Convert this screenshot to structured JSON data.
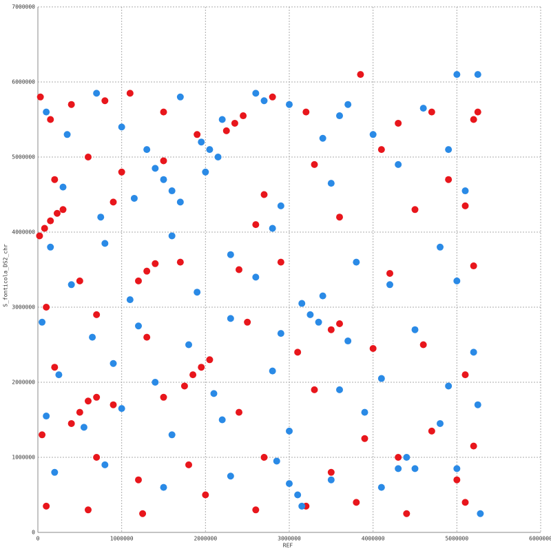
{
  "chart_data": {
    "type": "scatter",
    "xlabel": "REF",
    "ylabel": "S_fonticola_DS2_chr",
    "xlim": [
      0,
      6000000
    ],
    "ylim": [
      0,
      7000000
    ],
    "xticks": [
      0,
      1000000,
      2000000,
      3000000,
      4000000,
      5000000,
      6000000
    ],
    "yticks": [
      0,
      1000000,
      2000000,
      3000000,
      4000000,
      5000000,
      6000000,
      7000000
    ],
    "grid": true,
    "series": [
      {
        "color": "#e8161c",
        "x": [
          20000,
          80000,
          150000,
          230000,
          300000,
          1200000,
          1300000,
          1400000,
          1750000,
          1850000,
          1950000,
          2050000,
          400000,
          500000,
          600000,
          700000,
          2250000,
          2350000,
          2450000,
          3500000,
          3600000,
          30000,
          150000,
          400000,
          800000,
          1100000,
          1500000,
          1900000,
          2800000,
          3200000,
          3850000,
          4300000,
          4700000,
          5200000,
          5250000,
          600000,
          1000000,
          1500000,
          2700000,
          3300000,
          4100000,
          4900000,
          5100000,
          200000,
          900000,
          2600000,
          3600000,
          4500000,
          500000,
          1700000,
          2400000,
          2900000,
          4200000,
          5200000,
          100000,
          700000,
          1300000,
          2500000,
          3100000,
          4000000,
          4600000,
          5100000,
          200000,
          900000,
          1500000,
          2400000,
          3300000,
          3900000,
          4700000,
          5200000,
          50000,
          700000,
          1200000,
          1800000,
          2700000,
          3500000,
          4300000,
          5000000,
          100000,
          600000,
          1250000,
          2000000,
          2600000,
          3200000,
          3800000,
          4400000,
          5100000
        ],
        "values": [
          3950000,
          4050000,
          4150000,
          4250000,
          4300000,
          3350000,
          3480000,
          3580000,
          1950000,
          2100000,
          2200000,
          2300000,
          1450000,
          1600000,
          1750000,
          1800000,
          5350000,
          5450000,
          5550000,
          2700000,
          2780000,
          5800000,
          5500000,
          5700000,
          5750000,
          5850000,
          5600000,
          5300000,
          5800000,
          5600000,
          6100000,
          5450000,
          5600000,
          5500000,
          5600000,
          5000000,
          4800000,
          4950000,
          4500000,
          4900000,
          5100000,
          4700000,
          4350000,
          4700000,
          4400000,
          4100000,
          4200000,
          4300000,
          3350000,
          3600000,
          3500000,
          3600000,
          3450000,
          3550000,
          3000000,
          2900000,
          2600000,
          2800000,
          2400000,
          2450000,
          2500000,
          2100000,
          2200000,
          1700000,
          1800000,
          1600000,
          1900000,
          1250000,
          1350000,
          1150000,
          1300000,
          1000000,
          700000,
          900000,
          1000000,
          800000,
          1000000,
          700000,
          350000,
          300000,
          250000,
          500000,
          300000,
          350000,
          400000,
          250000,
          400000
        ]
      },
      {
        "color": "#2a8ae6",
        "x": [
          1400000,
          1500000,
          1600000,
          1700000,
          1950000,
          2050000,
          2150000,
          2600000,
          2700000,
          3150000,
          3250000,
          3350000,
          3700000,
          3600000,
          4400000,
          4500000,
          4300000,
          3000000,
          3100000,
          3150000,
          5000000,
          5250000,
          100000,
          350000,
          700000,
          1000000,
          1300000,
          1700000,
          2200000,
          3000000,
          3400000,
          4000000,
          4600000,
          4900000,
          300000,
          750000,
          1150000,
          2000000,
          2900000,
          3500000,
          4300000,
          5100000,
          150000,
          800000,
          1600000,
          2300000,
          2800000,
          3800000,
          4800000,
          400000,
          1100000,
          1900000,
          2600000,
          3400000,
          4200000,
          5000000,
          50000,
          650000,
          1200000,
          1800000,
          2300000,
          2900000,
          3700000,
          4500000,
          5200000,
          250000,
          900000,
          1400000,
          2100000,
          2800000,
          3600000,
          4100000,
          4900000,
          100000,
          550000,
          1000000,
          1600000,
          2200000,
          3000000,
          3900000,
          4800000,
          5250000,
          200000,
          800000,
          1500000,
          2300000,
          2850000,
          3500000,
          4100000,
          5000000,
          5280000
        ],
        "values": [
          4850000,
          4700000,
          4550000,
          4400000,
          5200000,
          5100000,
          5000000,
          5850000,
          5750000,
          3050000,
          2900000,
          2800000,
          5700000,
          5550000,
          1000000,
          850000,
          850000,
          650000,
          500000,
          350000,
          6100000,
          6100000,
          5600000,
          5300000,
          5850000,
          5400000,
          5100000,
          5800000,
          5500000,
          5700000,
          5250000,
          5300000,
          5650000,
          5100000,
          4600000,
          4200000,
          4450000,
          4800000,
          4350000,
          4650000,
          4900000,
          4550000,
          3800000,
          3850000,
          3950000,
          3700000,
          4050000,
          3600000,
          3800000,
          3300000,
          3100000,
          3200000,
          3400000,
          3150000,
          3300000,
          3350000,
          2800000,
          2600000,
          2750000,
          2500000,
          2850000,
          2650000,
          2550000,
          2700000,
          2400000,
          2100000,
          2250000,
          2000000,
          1850000,
          2150000,
          1900000,
          2050000,
          1950000,
          1550000,
          1400000,
          1650000,
          1300000,
          1500000,
          1350000,
          1600000,
          1450000,
          1700000,
          800000,
          900000,
          600000,
          750000,
          950000,
          700000,
          600000,
          850000,
          250000
        ]
      }
    ]
  }
}
